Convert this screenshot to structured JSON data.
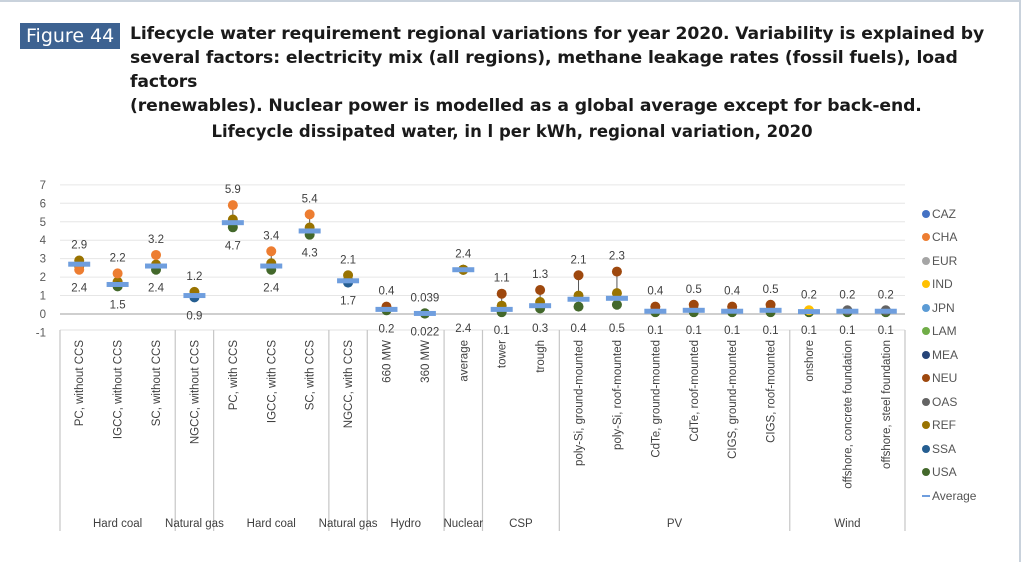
{
  "figure": {
    "badge": "Figure 44",
    "caption_lines": [
      "Lifecycle water requirement regional variations for year 2020. Variability is explained by",
      "several factors: electricity mix (all regions), methane leakage rates (fossil fuels), load factors",
      "(renewables). Nuclear power is modelled as a global average except for back-end."
    ]
  },
  "chart_data": {
    "type": "scatter",
    "title": "Lifecycle dissipated water, in l per kWh, regional variation, 2020",
    "xlabel": "",
    "ylabel": "",
    "ylim": [
      -1,
      7
    ],
    "yticks": [
      -1,
      0,
      1,
      2,
      3,
      4,
      5,
      6,
      7
    ],
    "grid": true,
    "legend_position": "right",
    "categories": [
      "PC, without CCS",
      "IGCC, without CCS",
      "SC, without CCS",
      "NGCC, without CCS",
      "PC, with CCS",
      "IGCC, with CCS",
      "SC, with CCS",
      "NGCC, with CCS",
      "660 MW",
      "360 MW",
      "average",
      "tower",
      "trough",
      "poly-Si, ground-mounted",
      "poly-Si, roof-mounted",
      "CdTe, ground-mounted",
      "CdTe, roof-mounted",
      "CIGS, ground-mounted",
      "CIGS, roof-mounted",
      "onshore",
      "offshore, concrete foundation",
      "offshore, steel foundation"
    ],
    "groups": [
      {
        "label": "Hard coal",
        "count": 3
      },
      {
        "label": "Natural gas",
        "count": 1
      },
      {
        "label": "Hard coal",
        "count": 3
      },
      {
        "label": "Natural gas",
        "count": 1
      },
      {
        "label": "Hydro",
        "count": 2
      },
      {
        "label": "Nuclear",
        "count": 1
      },
      {
        "label": "CSP",
        "count": 2
      },
      {
        "label": "PV",
        "count": 6
      },
      {
        "label": "Wind",
        "count": 3
      }
    ],
    "max_labels": [
      "2.9",
      "2.2",
      "3.2",
      "1.2",
      "5.9",
      "3.4",
      "5.4",
      "2.1",
      "0.4",
      "0.039",
      "2.4",
      "1.1",
      "1.3",
      "2.1",
      "2.3",
      "0.4",
      "0.5",
      "0.4",
      "0.5",
      "0.2",
      "0.2",
      "0.2"
    ],
    "min_labels": [
      "2.4",
      "1.5",
      "2.4",
      "0.9",
      "4.7",
      "2.4",
      "4.3",
      "1.7",
      "0.2",
      "0.022",
      "2.4",
      "0.1",
      "0.3",
      "0.4",
      "0.5",
      "0.1",
      "0.1",
      "0.1",
      "0.1",
      "0.1",
      "0.1",
      "0.1"
    ],
    "max": [
      2.9,
      2.2,
      3.2,
      1.2,
      5.9,
      3.4,
      5.4,
      2.1,
      0.4,
      0.039,
      2.4,
      1.1,
      1.3,
      2.1,
      2.3,
      0.4,
      0.5,
      0.4,
      0.5,
      0.2,
      0.2,
      0.2
    ],
    "min": [
      2.4,
      1.5,
      2.4,
      0.9,
      4.7,
      2.4,
      4.3,
      1.7,
      0.2,
      0.022,
      2.4,
      0.1,
      0.3,
      0.4,
      0.5,
      0.1,
      0.1,
      0.1,
      0.1,
      0.1,
      0.1,
      0.1
    ],
    "average": [
      2.7,
      1.6,
      2.6,
      1.0,
      4.95,
      2.6,
      4.5,
      1.8,
      0.25,
      0.03,
      2.4,
      0.25,
      0.45,
      0.8,
      0.85,
      0.15,
      0.2,
      0.15,
      0.2,
      0.13,
      0.15,
      0.15
    ],
    "series": [
      {
        "name": "CAZ",
        "color": "#4472c4"
      },
      {
        "name": "CHA",
        "color": "#ed7d31"
      },
      {
        "name": "EUR",
        "color": "#a5a5a5"
      },
      {
        "name": "IND",
        "color": "#ffc000"
      },
      {
        "name": "JPN",
        "color": "#5b9bd5"
      },
      {
        "name": "LAM",
        "color": "#70ad47"
      },
      {
        "name": "MEA",
        "color": "#264478"
      },
      {
        "name": "NEU",
        "color": "#9e480e"
      },
      {
        "name": "OAS",
        "color": "#636363"
      },
      {
        "name": "REF",
        "color": "#997300"
      },
      {
        "name": "SSA",
        "color": "#255e91"
      },
      {
        "name": "USA",
        "color": "#43682b"
      },
      {
        "name": "Average",
        "color": "#6f9ede",
        "marker": "dash"
      }
    ],
    "max_series": [
      "REF",
      "CHA",
      "CHA",
      "REF",
      "CHA",
      "CHA",
      "CHA",
      "REF",
      "NEU",
      "USA",
      "REF",
      "NEU",
      "NEU",
      "NEU",
      "NEU",
      "NEU",
      "NEU",
      "NEU",
      "NEU",
      "IND",
      "OAS",
      "OAS"
    ],
    "min_series": [
      "CHA",
      "USA",
      "USA",
      "SSA",
      "USA",
      "USA",
      "USA",
      "SSA",
      "USA",
      "USA",
      "USA",
      "USA",
      "USA",
      "USA",
      "USA",
      "USA",
      "USA",
      "USA",
      "USA",
      "USA",
      "USA",
      "USA"
    ]
  }
}
